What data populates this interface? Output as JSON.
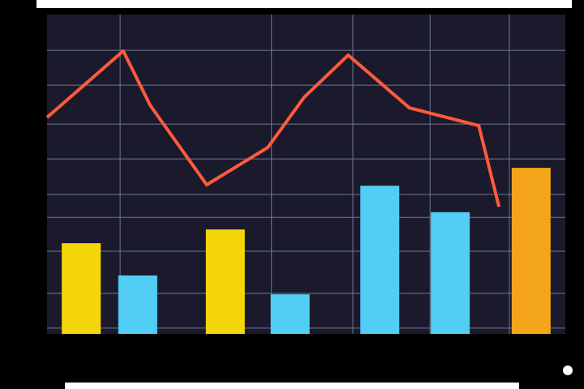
{
  "chart_data": [
    {
      "type": "bar",
      "x": [
        6.6,
        17.5,
        34.4,
        46.9,
        64.2,
        77.8,
        93.4
      ],
      "values": [
        28.4,
        18.3,
        32.7,
        12.4,
        46.4,
        38.1,
        52.0
      ],
      "colors": [
        "#f5d60a",
        "#52cdf5",
        "#f5d60a",
        "#52cdf5",
        "#52cdf5",
        "#52cdf5",
        "#f5a51a"
      ],
      "xlim": [
        0,
        100
      ],
      "ylim": [
        0,
        100
      ],
      "xticks": [
        14.1,
        43.3,
        59.0,
        73.9,
        89.2
      ],
      "yticks": [
        1.8,
        12.7,
        25.9,
        36.5,
        43.7,
        54.8,
        65.7,
        77.9,
        88.8
      ],
      "grid": true
    },
    {
      "type": "line",
      "x": [
        0,
        14.7,
        19.9,
        30.8,
        42.6,
        49.6,
        58.1,
        69.9,
        83.3,
        87.2
      ],
      "values": [
        67.8,
        88.6,
        71.6,
        46.7,
        58.4,
        74.1,
        87.3,
        70.8,
        65.2,
        39.8
      ],
      "color": "#ff5a3c",
      "xlim": [
        0,
        100
      ],
      "ylim": [
        0,
        100
      ]
    }
  ]
}
